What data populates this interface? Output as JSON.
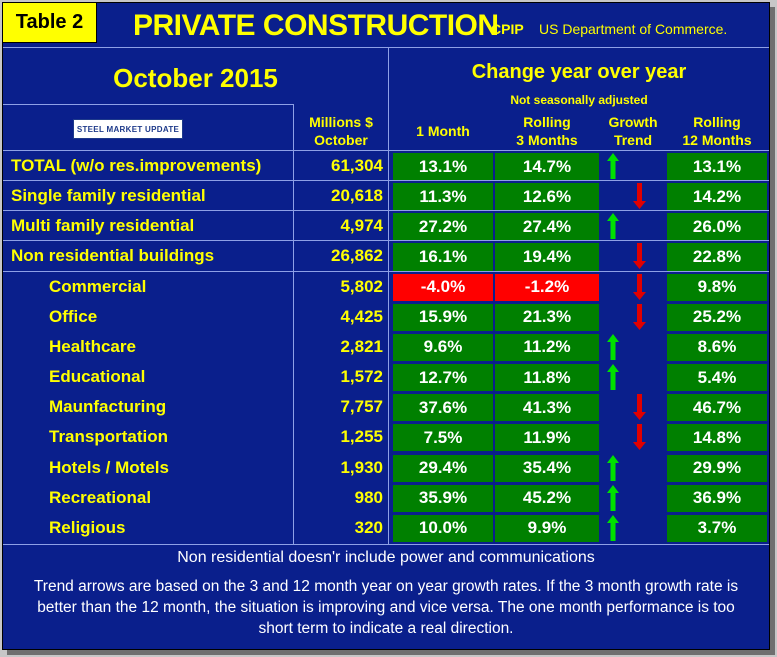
{
  "header": {
    "tag": "Table 2",
    "title": "PRIVATE CONSTRUCTION",
    "code": "CPIP",
    "source": "US Department of Commerce."
  },
  "period": "October 2015",
  "logo_text": "STEEL MARKET UPDATE",
  "columns": {
    "millions_line1": "Millions $",
    "millions_line2": "October",
    "change_title": "Change year over year",
    "not_sa": "Not seasonally adjusted",
    "one_month": "1 Month",
    "rolling3_line1": "Rolling",
    "rolling3_line2": "3 Months",
    "growth_line1": "Growth",
    "growth_line2": "Trend",
    "rolling12_line1": "Rolling",
    "rolling12_line2": "12 Months"
  },
  "rows": [
    {
      "label": "TOTAL (w/o res.improvements)",
      "millions": "61,304",
      "m1": "13.1%",
      "m3": "14.7%",
      "trend": "up",
      "m12": "13.1%",
      "m1_color": "#008000",
      "m3_color": "#008000",
      "indent": false
    },
    {
      "label": "Single family residential",
      "millions": "20,618",
      "m1": "11.3%",
      "m3": "12.6%",
      "trend": "down",
      "m12": "14.2%",
      "m1_color": "#008000",
      "m3_color": "#008000",
      "indent": false
    },
    {
      "label": "Multi family residential",
      "millions": "4,974",
      "m1": "27.2%",
      "m3": "27.4%",
      "trend": "up",
      "m12": "26.0%",
      "m1_color": "#008000",
      "m3_color": "#008000",
      "indent": false
    },
    {
      "label": "Non residential buildings",
      "millions": "26,862",
      "m1": "16.1%",
      "m3": "19.4%",
      "trend": "down",
      "m12": "22.8%",
      "m1_color": "#008000",
      "m3_color": "#008000",
      "indent": false
    },
    {
      "label": "Commercial",
      "millions": "5,802",
      "m1": "-4.0%",
      "m3": "-1.2%",
      "trend": "down",
      "m12": "9.8%",
      "m1_color": "#ff0000",
      "m3_color": "#ff0000",
      "indent": true
    },
    {
      "label": "Office",
      "millions": "4,425",
      "m1": "15.9%",
      "m3": "21.3%",
      "trend": "down",
      "m12": "25.2%",
      "m1_color": "#008000",
      "m3_color": "#008000",
      "indent": true
    },
    {
      "label": "Healthcare",
      "millions": "2,821",
      "m1": "9.6%",
      "m3": "11.2%",
      "trend": "up",
      "m12": "8.6%",
      "m1_color": "#008000",
      "m3_color": "#008000",
      "indent": true
    },
    {
      "label": "Educational",
      "millions": "1,572",
      "m1": "12.7%",
      "m3": "11.8%",
      "trend": "up",
      "m12": "5.4%",
      "m1_color": "#008000",
      "m3_color": "#008000",
      "indent": true
    },
    {
      "label": "Maunfacturing",
      "millions": "7,757",
      "m1": "37.6%",
      "m3": "41.3%",
      "trend": "down",
      "m12": "46.7%",
      "m1_color": "#008000",
      "m3_color": "#008000",
      "indent": true
    },
    {
      "label": "Transportation",
      "millions": "1,255",
      "m1": "7.5%",
      "m3": "11.9%",
      "trend": "down",
      "m12": "14.8%",
      "m1_color": "#008000",
      "m3_color": "#008000",
      "indent": true
    },
    {
      "label": "Hotels / Motels",
      "millions": "1,930",
      "m1": "29.4%",
      "m3": "35.4%",
      "trend": "up",
      "m12": "29.9%",
      "m1_color": "#008000",
      "m3_color": "#008000",
      "indent": true
    },
    {
      "label": "Recreational",
      "millions": "980",
      "m1": "35.9%",
      "m3": "45.2%",
      "trend": "up",
      "m12": "36.9%",
      "m1_color": "#008000",
      "m3_color": "#008000",
      "indent": true
    },
    {
      "label": "Religious",
      "millions": "320",
      "m1": "10.0%",
      "m3": "9.9%",
      "trend": "up",
      "m12": "3.7%",
      "m1_color": "#008000",
      "m3_color": "#008000",
      "indent": true
    }
  ],
  "colors": {
    "background": "#0a1f8c",
    "accent": "#ffff00",
    "green": "#008000",
    "red": "#ff0000",
    "arrow_up": "#00e000",
    "arrow_down": "#e00000"
  },
  "footnote": "Non residential doesn'r include power and communications",
  "explanation": "Trend arrows are based on the 3 and 12 month year on year growth rates. If the 3 month growth rate is better than the 12 month, the situation is improving and vice versa. The one month performance is too short term to indicate a real direction."
}
